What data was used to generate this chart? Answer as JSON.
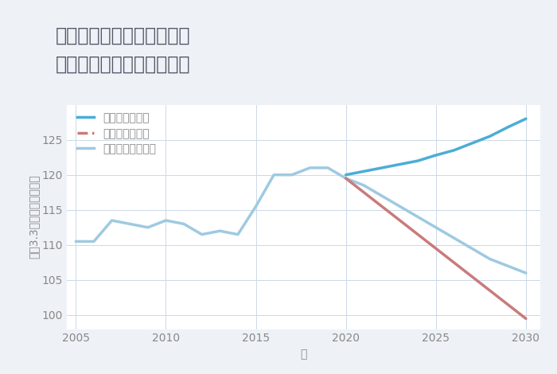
{
  "title": "岐阜県安八郡安八町大森の\n中古マンションの価格推移",
  "xlabel": "年",
  "ylabel": "坪（3.3㎡）単価（万円）",
  "background_color": "#eef2f7",
  "plot_background": "#ffffff",
  "historical_years": [
    2005,
    2006,
    2007,
    2008,
    2009,
    2010,
    2011,
    2012,
    2013,
    2014,
    2015,
    2016,
    2017,
    2018,
    2019,
    2020
  ],
  "historical_values": [
    110.5,
    110.5,
    113.5,
    113.0,
    112.5,
    113.5,
    113.0,
    111.5,
    112.0,
    111.5,
    115.5,
    120.0,
    120.0,
    121.0,
    121.0,
    119.5
  ],
  "good_years": [
    2020,
    2021,
    2022,
    2023,
    2024,
    2025,
    2026,
    2027,
    2028,
    2029,
    2030
  ],
  "good_values": [
    120.0,
    120.5,
    121.0,
    121.5,
    122.0,
    122.8,
    123.5,
    124.5,
    125.5,
    126.8,
    128.0
  ],
  "bad_years": [
    2020,
    2021,
    2022,
    2023,
    2024,
    2025,
    2026,
    2027,
    2028,
    2029,
    2030
  ],
  "bad_values": [
    119.5,
    117.5,
    115.5,
    113.5,
    111.5,
    109.5,
    107.5,
    105.5,
    103.5,
    101.5,
    99.5
  ],
  "normal_years": [
    2020,
    2021,
    2022,
    2023,
    2024,
    2025,
    2026,
    2027,
    2028,
    2029,
    2030
  ],
  "normal_values": [
    119.5,
    118.5,
    117.0,
    115.5,
    114.0,
    112.5,
    111.0,
    109.5,
    108.0,
    107.0,
    106.0
  ],
  "good_color": "#4badd6",
  "bad_color": "#c97b7b",
  "normal_color": "#9ecae1",
  "historical_color": "#9ecae1",
  "ylim": [
    98,
    130
  ],
  "yticks": [
    100,
    105,
    110,
    115,
    120,
    125
  ],
  "xlim": [
    2004.5,
    2030.8
  ],
  "xticks": [
    2005,
    2010,
    2015,
    2020,
    2025,
    2030
  ],
  "title_color": "#555566",
  "axis_color": "#888888",
  "grid_color": "#ccd9e8",
  "legend_labels": [
    "グッドシナリオ",
    "バッドシナリオ",
    "ノーマルシナリオ"
  ],
  "title_fontsize": 17,
  "axis_label_fontsize": 10,
  "tick_fontsize": 10,
  "legend_fontsize": 10,
  "line_width": 2.5
}
